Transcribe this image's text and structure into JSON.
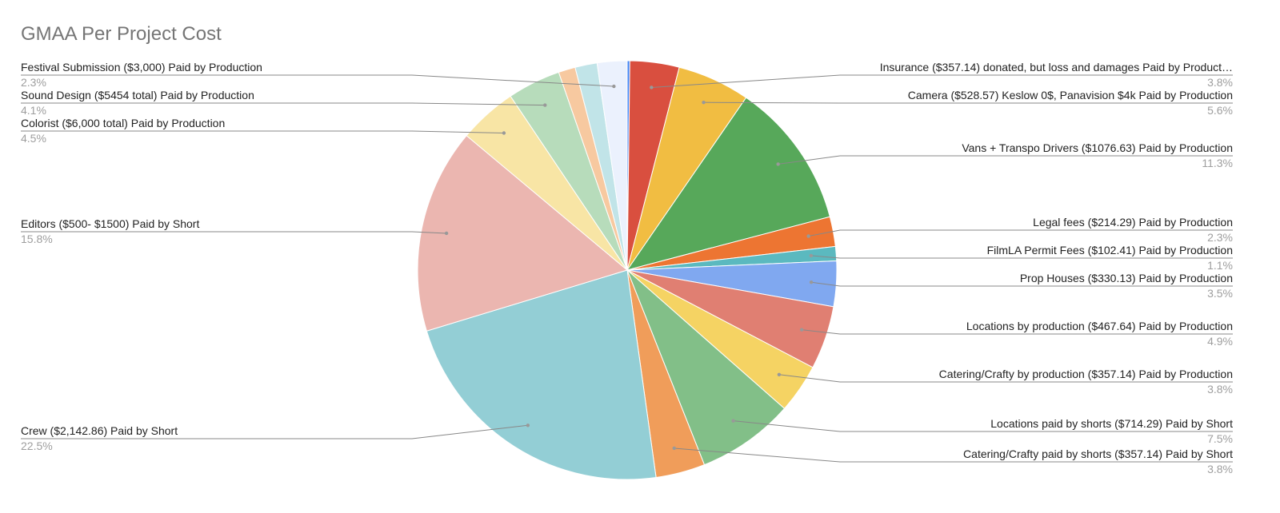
{
  "chart_data": {
    "type": "pie",
    "title": "GMAA Per Project Cost",
    "categories": [
      null,
      "Insurance ($357.14) donated, but loss and damages Paid by Product…",
      "Camera ($528.57)  Keslow 0$, Panavision $4k Paid by Production",
      "Vans + Transpo Drivers ($1076.63) Paid by Production",
      "Legal fees ($214.29) Paid by Production",
      "FilmLA Permit Fees ($102.41) Paid by Production",
      "Prop Houses ($330.13) Paid by Production",
      "Locations by production ($467.64) Paid by Production",
      "Catering/Crafty by production ($357.14) Paid by Production",
      "Locations paid by shorts ($714.29) Paid by Short",
      "Catering/Crafty paid by shorts ($357.14) Paid by Short",
      "Crew ($2,142.86) Paid by Short",
      "Editors ($500- $1500) Paid by Short",
      "Colorist ($6,000 total) Paid by Production",
      "Sound Design ($5454 total) Paid by Production",
      null,
      null,
      "Festival Submission ($3,000) Paid by Production"
    ],
    "values": [
      0.2,
      3.8,
      5.6,
      11.3,
      2.3,
      1.1,
      3.5,
      4.9,
      3.8,
      7.5,
      3.8,
      22.5,
      15.8,
      4.5,
      4.1,
      1.3,
      1.7,
      2.3
    ],
    "value_labels": [
      null,
      "3.8%",
      "5.6%",
      "11.3%",
      "2.3%",
      "1.1%",
      "3.5%",
      "4.9%",
      "3.8%",
      "7.5%",
      "3.8%",
      "22.5%",
      "15.8%",
      "4.5%",
      "4.1%",
      null,
      null,
      "2.3%"
    ],
    "colors": [
      "#4285f4",
      "#d94f3f",
      "#f1bd42",
      "#57a85a",
      "#ed7532",
      "#5bb9bf",
      "#80a8f0",
      "#e07f72",
      "#f5d363",
      "#82bf88",
      "#f09d5a",
      "#93ced5",
      "#ebb6b0",
      "#f8e5a5",
      "#b7dcbb",
      "#f7c9a0",
      "#c1e4e8",
      "#ebf1fd"
    ]
  }
}
